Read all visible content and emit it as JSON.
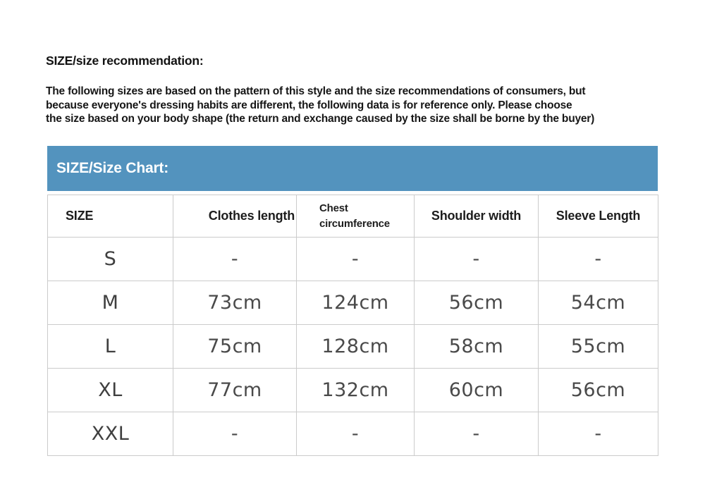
{
  "page": {
    "heading": "SIZE/size recommendation:",
    "paragraph_lines": [
      "The following sizes are based on the pattern of this style and the size recommendations of consumers, but",
      "because everyone's dressing habits are different, the following data is for reference only. Please choose",
      "the size based on your body shape (the return and exchange caused by the size shall be borne by the buyer)"
    ]
  },
  "size_chart": {
    "title": "SIZE/Size Chart:",
    "accent_color": "#5393BE",
    "border_color": "#cbcbcb",
    "columns": [
      "SIZE",
      "Clothes length",
      "Chest circumference",
      "Shoulder width",
      "Sleeve Length"
    ],
    "rows": [
      {
        "size": "S",
        "values": [
          "-",
          "-",
          "-",
          "-"
        ]
      },
      {
        "size": "M",
        "values": [
          "73cm",
          "124cm",
          "56cm",
          "54cm"
        ]
      },
      {
        "size": "L",
        "values": [
          "75cm",
          "128cm",
          "58cm",
          "55cm"
        ]
      },
      {
        "size": "XL",
        "values": [
          "77cm",
          "132cm",
          "60cm",
          "56cm"
        ]
      },
      {
        "size": "XXL",
        "values": [
          "-",
          "-",
          "-",
          "-"
        ]
      }
    ]
  }
}
